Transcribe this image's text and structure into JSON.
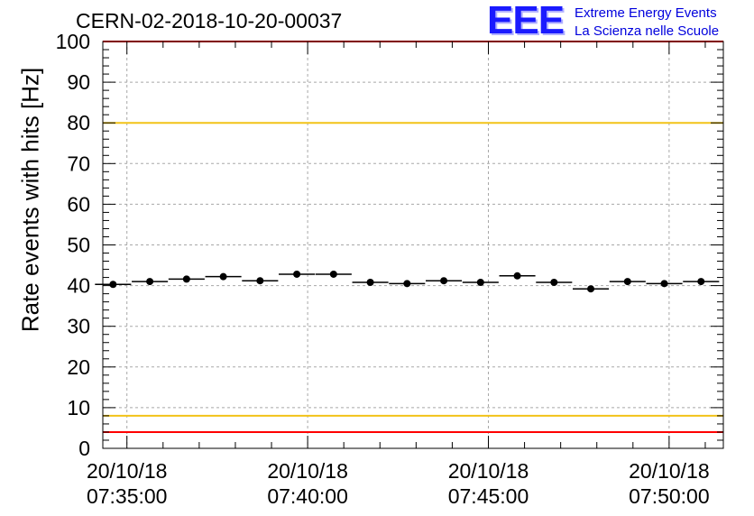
{
  "title": "CERN-02-2018-10-20-00037",
  "logo": {
    "text": "EEE",
    "line1": "Extreme Energy Events",
    "line2": "La Scienza nelle Scuole"
  },
  "chart_data": {
    "type": "scatter",
    "ylabel": "Rate events with hits [Hz]",
    "ylim": [
      0,
      100
    ],
    "yticks": [
      0,
      10,
      20,
      30,
      40,
      50,
      60,
      70,
      80,
      90,
      100
    ],
    "x_range": [
      "2018-10-20 07:34:20",
      "2018-10-20 07:51:30"
    ],
    "xticks": [
      {
        "date": "20/10/18",
        "time": "07:35:00"
      },
      {
        "date": "20/10/18",
        "time": "07:40:00"
      },
      {
        "date": "20/10/18",
        "time": "07:45:00"
      },
      {
        "date": "20/10/18",
        "time": "07:50:00"
      }
    ],
    "grid": true,
    "reference_lines": [
      {
        "y": 80,
        "color": "#f2c318"
      },
      {
        "y": 8,
        "color": "#f2c318"
      },
      {
        "y": 4,
        "color": "#ff0000"
      },
      {
        "y": 100,
        "color": "#ff0000"
      }
    ],
    "series": [
      {
        "x": [
          "07:34:37",
          "07:35:38",
          "07:36:39",
          "07:37:40",
          "07:38:41",
          "07:39:42",
          "07:40:43",
          "07:41:44",
          "07:42:45",
          "07:43:46",
          "07:44:47",
          "07:45:48",
          "07:46:49",
          "07:47:50",
          "07:48:51",
          "07:49:52",
          "07:50:53"
        ],
        "y": [
          40.3,
          41.0,
          41.6,
          42.2,
          41.2,
          42.8,
          42.8,
          40.8,
          40.5,
          41.2,
          40.8,
          42.4,
          40.8,
          39.2,
          41.0,
          40.5,
          41.0
        ],
        "color": "#000000"
      }
    ]
  }
}
